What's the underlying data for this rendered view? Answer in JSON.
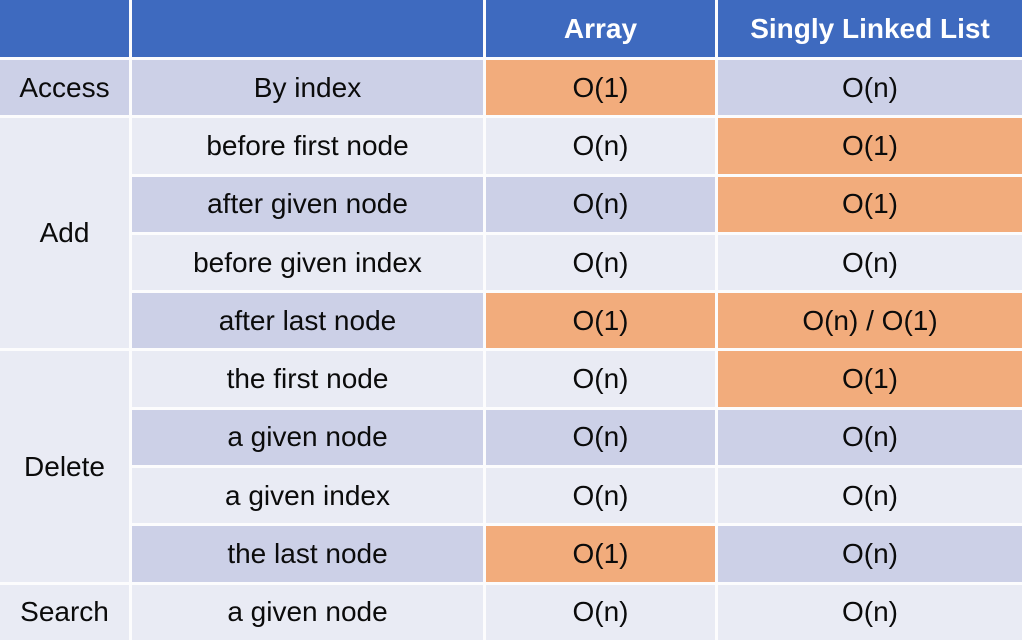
{
  "colors": {
    "header-bg": "#3E6ABF",
    "header-text": "#FFFFFF",
    "band-dark": "#CCD0E7",
    "band-light": "#E9EBF4",
    "highlight": "#F2AC7C",
    "grid-line": "#FCFCFD",
    "text": "#0B0B0B"
  },
  "chart_data": {
    "type": "table",
    "header": {
      "category": "",
      "operation": "",
      "array": "Array",
      "sll": "Singly Linked List"
    },
    "rows": [
      {
        "group": "Access",
        "operation": "By index",
        "array": "O(1)",
        "sll": "O(n)",
        "array_highlighted": true,
        "sll_highlighted": false
      },
      {
        "group": "Add",
        "operation": "before first node",
        "array": "O(n)",
        "sll": "O(1)",
        "array_highlighted": false,
        "sll_highlighted": true
      },
      {
        "operation": "after given node",
        "array": "O(n)",
        "sll": "O(1)",
        "array_highlighted": false,
        "sll_highlighted": true
      },
      {
        "operation": "before given index",
        "array": "O(n)",
        "sll": "O(n)",
        "array_highlighted": false,
        "sll_highlighted": false
      },
      {
        "operation": "after last node",
        "array": "O(1)",
        "sll": "O(n) / O(1)",
        "array_highlighted": true,
        "sll_highlighted": true
      },
      {
        "group": "Delete",
        "operation": "the first node",
        "array": "O(n)",
        "sll": "O(1)",
        "array_highlighted": false,
        "sll_highlighted": true
      },
      {
        "operation": "a given node",
        "array": "O(n)",
        "sll": "O(n)",
        "array_highlighted": false,
        "sll_highlighted": false
      },
      {
        "operation": "a given index",
        "array": "O(n)",
        "sll": "O(n)",
        "array_highlighted": false,
        "sll_highlighted": false
      },
      {
        "operation": "the last node",
        "array": "O(1)",
        "sll": "O(n)",
        "array_highlighted": true,
        "sll_highlighted": false
      },
      {
        "group": "Search",
        "operation": "a given node",
        "array": "O(n)",
        "sll": "O(n)",
        "array_highlighted": false,
        "sll_highlighted": false
      }
    ]
  }
}
